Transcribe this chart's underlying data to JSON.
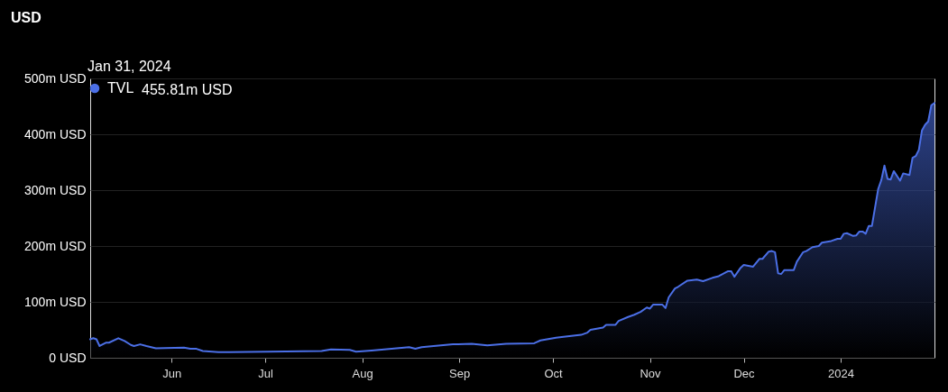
{
  "chart_data": {
    "type": "area",
    "annotations": [
      "USD",
      "Jan 31, 2024",
      "455.81m USD"
    ],
    "x": [
      "2023-05-06",
      "2023-05-07",
      "2023-05-08",
      "2023-05-09",
      "2023-05-11",
      "2023-05-12",
      "2023-05-15",
      "2023-05-17",
      "2023-05-19",
      "2023-05-20",
      "2023-05-22",
      "2023-05-24",
      "2023-05-27",
      "2023-06-05",
      "2023-06-07",
      "2023-06-09",
      "2023-06-11",
      "2023-06-16",
      "2023-07-02",
      "2023-07-19",
      "2023-07-22",
      "2023-07-28",
      "2023-07-30",
      "2023-08-04",
      "2023-08-16",
      "2023-08-18",
      "2023-08-20",
      "2023-08-30",
      "2023-09-05",
      "2023-09-10",
      "2023-09-16",
      "2023-09-25",
      "2023-09-27",
      "2023-10-02",
      "2023-10-05",
      "2023-10-10",
      "2023-10-12",
      "2023-10-13",
      "2023-10-17",
      "2023-10-18",
      "2023-10-21",
      "2023-10-22",
      "2023-10-25",
      "2023-10-27",
      "2023-10-29",
      "2023-10-31",
      "2023-11-01",
      "2023-11-02",
      "2023-11-05",
      "2023-11-06",
      "2023-11-07",
      "2023-11-09",
      "2023-11-10",
      "2023-11-13",
      "2023-11-16",
      "2023-11-18",
      "2023-11-21",
      "2023-11-23",
      "2023-11-26",
      "2023-11-27",
      "2023-11-28",
      "2023-11-30",
      "2023-12-01",
      "2023-12-04",
      "2023-12-05",
      "2023-12-06",
      "2023-12-07",
      "2023-12-09",
      "2023-12-10",
      "2023-12-11",
      "2023-12-12",
      "2023-12-13",
      "2023-12-14",
      "2023-12-17",
      "2023-12-18",
      "2023-12-20",
      "2023-12-21",
      "2023-12-23",
      "2023-12-25",
      "2023-12-26",
      "2023-12-29",
      "2023-12-31",
      "2024-01-01",
      "2024-01-02",
      "2024-01-03",
      "2024-01-05",
      "2024-01-06",
      "2024-01-07",
      "2024-01-08",
      "2024-01-09",
      "2024-01-10",
      "2024-01-11",
      "2024-01-13",
      "2024-01-14",
      "2024-01-15",
      "2024-01-16",
      "2024-01-17",
      "2024-01-18",
      "2024-01-20",
      "2024-01-21",
      "2024-01-23",
      "2024-01-24",
      "2024-01-25",
      "2024-01-26",
      "2024-01-27",
      "2024-01-28",
      "2024-01-29",
      "2024-01-30",
      "2024-01-31"
    ],
    "series": [
      {
        "name": "TVL",
        "color": "#4b6fe6",
        "values": [
          33,
          35,
          33,
          21,
          27,
          27,
          35,
          30,
          23,
          21,
          24,
          21,
          17,
          18,
          16,
          16,
          12,
          10,
          11,
          12,
          15,
          14,
          11,
          13,
          19,
          16,
          19,
          24,
          25,
          22,
          25,
          26,
          31,
          36,
          38,
          41,
          45,
          50,
          54,
          59,
          59,
          66,
          73,
          77,
          82,
          90,
          88,
          95,
          95,
          89,
          108,
          124,
          127,
          138,
          140,
          137,
          143,
          146,
          155,
          155,
          145,
          161,
          166,
          163,
          170,
          177,
          177,
          190,
          191,
          189,
          151,
          150,
          157,
          157,
          172,
          189,
          191,
          198,
          200,
          206,
          209,
          213,
          213,
          222,
          223,
          218,
          219,
          226,
          226,
          222,
          236,
          236,
          302,
          318,
          344,
          320,
          319,
          334,
          317,
          330,
          327,
          358,
          361,
          372,
          407,
          417,
          423,
          452,
          455.81
        ]
      }
    ],
    "xlim": [
      "2023-05-06",
      "2024-01-31"
    ],
    "xticks": [
      {
        "value": "2023-06-01",
        "label": "Jun"
      },
      {
        "value": "2023-07-01",
        "label": "Jul"
      },
      {
        "value": "2023-08-01",
        "label": "Aug"
      },
      {
        "value": "2023-09-01",
        "label": "Sep"
      },
      {
        "value": "2023-10-01",
        "label": "Oct"
      },
      {
        "value": "2023-11-01",
        "label": "Nov"
      },
      {
        "value": "2023-12-01",
        "label": "Dec"
      },
      {
        "value": "2024-01-01",
        "label": "2024"
      }
    ],
    "ylim": [
      0,
      500
    ],
    "yticks": [
      {
        "value": 0,
        "label": "0 USD"
      },
      {
        "value": 100,
        "label": "100m USD"
      },
      {
        "value": 200,
        "label": "200m USD"
      },
      {
        "value": 300,
        "label": "300m USD"
      },
      {
        "value": 400,
        "label": "400m USD"
      },
      {
        "value": 500,
        "label": "500m USD"
      }
    ],
    "grid": "y",
    "legend": "top left"
  }
}
